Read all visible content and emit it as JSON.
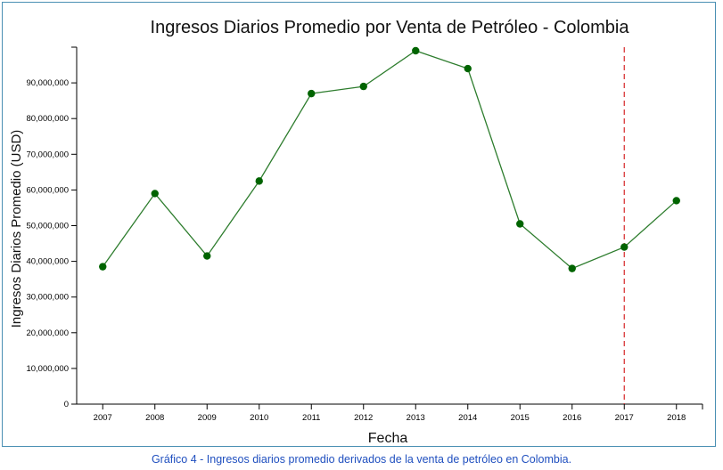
{
  "chart_data": {
    "type": "line",
    "title": "Ingresos Diarios Promedio por Venta de Petróleo - Colombia",
    "xlabel": "Fecha",
    "ylabel": "Ingresos Diarios Promedio (USD)",
    "x": [
      "2007",
      "2008",
      "2009",
      "2010",
      "2011",
      "2012",
      "2013",
      "2014",
      "2015",
      "2016",
      "2017",
      "2018"
    ],
    "series": [
      {
        "values": [
          38500000,
          59000000,
          41500000,
          62500000,
          87000000,
          89000000,
          99000000,
          94000000,
          50500000,
          38000000,
          44000000,
          57000000
        ]
      }
    ],
    "ylim": [
      0,
      100000000
    ],
    "yticks": [
      0,
      10000000,
      20000000,
      30000000,
      40000000,
      50000000,
      60000000,
      70000000,
      80000000,
      90000000
    ],
    "ytick_labels": [
      "0",
      "10,000,000",
      "20,000,000",
      "30,000,000",
      "40,000,000",
      "50,000,000",
      "60,000,000",
      "70,000,000",
      "80,000,000",
      "90,000,000"
    ],
    "reference_line": {
      "x": "2017",
      "style": "dashed",
      "color": "#d62728"
    },
    "colors": {
      "line": "#2e7d2e",
      "marker": "#006400",
      "axis": "#000000"
    },
    "grid": false
  },
  "caption": "Gráfico 4 - Ingresos diarios promedio derivados de la venta de petróleo en Colombia."
}
